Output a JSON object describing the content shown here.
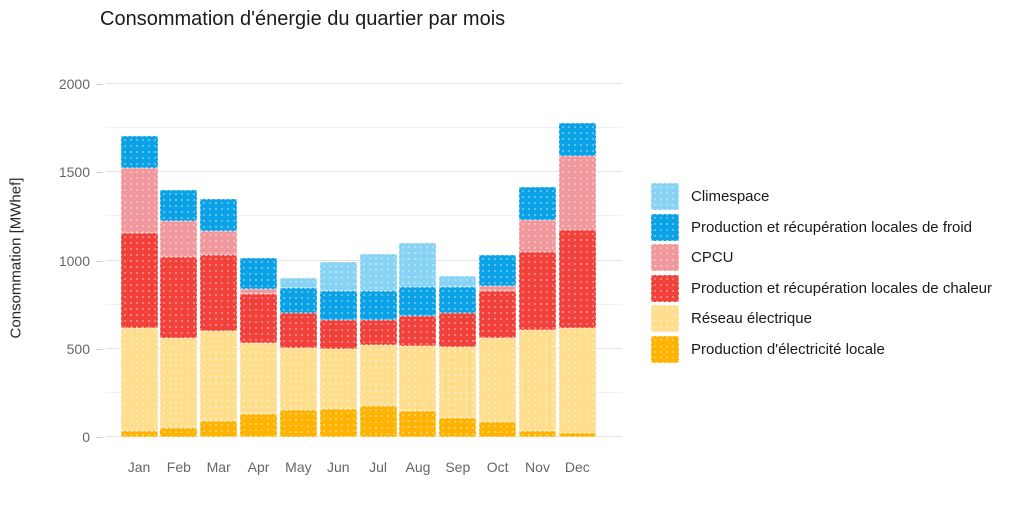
{
  "chart_data": {
    "type": "bar",
    "stacked": true,
    "title": "Consommation d'énergie du quartier par mois",
    "xlabel": "",
    "ylabel": "Consommation [MWhef]",
    "ylim": [
      0,
      2000
    ],
    "yticks": [
      0,
      500,
      1000,
      1500,
      2000
    ],
    "grid_minor_step": 250,
    "grid": "on",
    "legend_position": "right",
    "categories": [
      "Jan",
      "Feb",
      "Mar",
      "Apr",
      "May",
      "Jun",
      "Jul",
      "Aug",
      "Sep",
      "Oct",
      "Nov",
      "Dec"
    ],
    "series": [
      {
        "name": "Production d'électricité locale",
        "color": "#FEB302",
        "values": [
          35,
          50,
          90,
          130,
          155,
          160,
          175,
          150,
          110,
          85,
          35,
          25
        ]
      },
      {
        "name": "Réseau électrique",
        "color": "#FEDD8D",
        "values": [
          580,
          510,
          510,
          400,
          350,
          340,
          345,
          365,
          400,
          475,
          570,
          595
        ]
      },
      {
        "name": "Production et récupération locales de chaleur",
        "color": "#F2413B",
        "values": [
          540,
          460,
          430,
          280,
          200,
          165,
          145,
          170,
          190,
          270,
          445,
          555
        ]
      },
      {
        "name": "CPCU",
        "color": "#F0989B",
        "values": [
          370,
          205,
          140,
          30,
          0,
          0,
          0,
          0,
          0,
          25,
          180,
          415
        ]
      },
      {
        "name": "Production et récupération locales de froid",
        "color": "#0AA1E6",
        "values": [
          180,
          175,
          180,
          175,
          140,
          160,
          160,
          165,
          150,
          175,
          185,
          190
        ]
      },
      {
        "name": "Climespace",
        "color": "#87D3F4",
        "values": [
          0,
          0,
          0,
          0,
          55,
          165,
          210,
          250,
          60,
          0,
          0,
          0
        ]
      }
    ],
    "totals": [
      1705,
      1400,
      1350,
      1015,
      900,
      990,
      1035,
      1100,
      910,
      1030,
      1415,
      1780
    ],
    "legend_order_top_to_bottom": [
      "Climespace",
      "Production et récupération locales de froid",
      "CPCU",
      "Production et récupération locales de chaleur",
      "Réseau électrique",
      "Production d'électricité locale"
    ]
  }
}
